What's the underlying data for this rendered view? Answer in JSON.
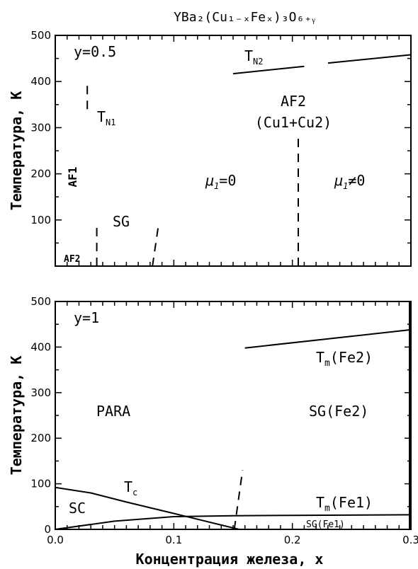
{
  "chart_data": [
    {
      "type": "line",
      "title": "YBa₂(Cu₁₋ₓFeₓ)₃O₆₊ᵧ",
      "panel_label": "y=0.5",
      "ylabel": "Температура, К",
      "xlim": [
        0,
        0.3
      ],
      "ylim": [
        0,
        500
      ],
      "yticks": [
        100,
        200,
        300,
        400,
        500
      ],
      "series": [
        {
          "name": "T_N2",
          "style": "solid",
          "x": [
            0.15,
            0.21
          ],
          "y": [
            417,
            433
          ]
        },
        {
          "name": "T_N2",
          "style": "solid",
          "x": [
            0.23,
            0.3
          ],
          "y": [
            440,
            458
          ]
        },
        {
          "style": "dashed",
          "x": [
            0.027,
            0.027
          ],
          "y": [
            340,
            400
          ]
        },
        {
          "style": "dashed",
          "x": [
            0.035,
            0.035
          ],
          "y": [
            0,
            85
          ]
        },
        {
          "style": "dashed",
          "x": [
            0.082,
            0.087
          ],
          "y": [
            0,
            88
          ]
        },
        {
          "style": "dashed",
          "x": [
            0.205,
            0.205
          ],
          "y": [
            0,
            285
          ]
        }
      ],
      "region_labels": {
        "tn2": "T",
        "tn2_sub": "N2",
        "tn1": "T",
        "tn1_sub": "N1",
        "af2_top": "AF2",
        "cu": "(Cu1+Cu2)",
        "mu_zero": "μ",
        "mu_zero_sub": "1",
        "mu_zero_rest": "=0",
        "mu_nonzero": "μ",
        "mu_nonzero_sub": "1",
        "mu_nonzero_rest": "≠0",
        "af1": "AF1",
        "sg": "SG",
        "af2_bottom": "AF2"
      }
    },
    {
      "type": "line",
      "panel_label": "y=1",
      "xlabel": "Концентрация железа, x",
      "ylabel": "Температура, К",
      "xlim": [
        0,
        0.3
      ],
      "ylim": [
        0,
        500
      ],
      "xticks": [
        0.0,
        0.1,
        0.2,
        0.3
      ],
      "yticks": [
        0,
        100,
        200,
        300,
        400,
        500
      ],
      "series": [
        {
          "name": "T_c",
          "style": "solid",
          "x": [
            0.0,
            0.03,
            0.06,
            0.1,
            0.155
          ],
          "y": [
            92,
            80,
            60,
            35,
            0
          ]
        },
        {
          "name": "T_m(Fe1)",
          "style": "solid",
          "x": [
            0.0,
            0.05,
            0.1,
            0.15,
            0.3
          ],
          "y": [
            0,
            18,
            28,
            30,
            32
          ]
        },
        {
          "name": "T_m(Fe2)",
          "style": "solid",
          "x": [
            0.16,
            0.3
          ],
          "y": [
            398,
            438
          ]
        },
        {
          "style": "dashed",
          "x": [
            0.151,
            0.158
          ],
          "y": [
            0,
            130
          ]
        }
      ],
      "region_labels": {
        "tm_fe2": "T",
        "tm_fe2_sub": "m",
        "tm_fe2_rest": "(Fe2)",
        "para": "PARA",
        "sg_fe2": "SG(Fe2)",
        "tc": "T",
        "tc_sub": "c",
        "sc": "SC",
        "tm_fe1": "T",
        "tm_fe1_sub": "m",
        "tm_fe1_rest": "(Fe1)",
        "sg_fe1": "SG(Fe1)"
      }
    }
  ]
}
